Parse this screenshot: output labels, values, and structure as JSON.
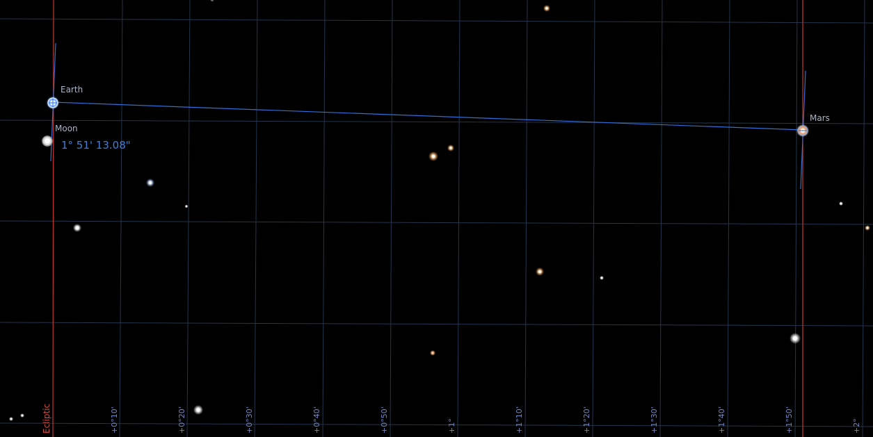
{
  "colors": {
    "background": "#000000",
    "grid": "#24354d",
    "ecliptic": "#c0392b",
    "measure_line": "#2e6fd8",
    "tick_text": "#6f86c9",
    "label_text": "#a9b4c4"
  },
  "bodies": {
    "earth": {
      "name": "Earth",
      "icon": "earth-planet-icon"
    },
    "moon": {
      "name": "Moon",
      "icon": "moon-icon"
    },
    "mars": {
      "name": "Mars",
      "icon": "mars-planet-icon"
    }
  },
  "measurement": {
    "angular_distance": "1° 51' 13.08\""
  },
  "ecliptic_label": "Ecliptic",
  "grid_ticks": [
    "+0°10'",
    "+0°20'",
    "+0°30'",
    "+0°40'",
    "+0°50'",
    "+1°",
    "+1°10'",
    "+1°20'",
    "+1°30'",
    "+1°40'",
    "+1°50'",
    "+2°"
  ]
}
